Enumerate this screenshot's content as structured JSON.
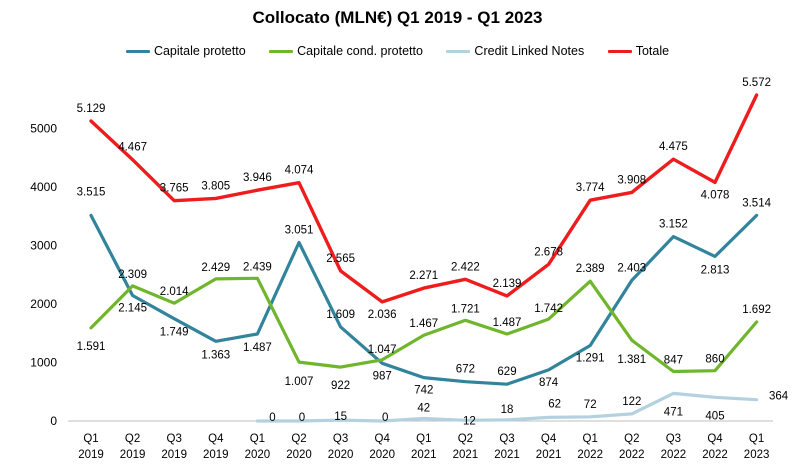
{
  "chart_data": {
    "type": "line",
    "title": "Collocato (MLN€) Q1 2019 - Q1 2023",
    "categories": [
      [
        "Q1",
        "2019"
      ],
      [
        "Q2",
        "2019"
      ],
      [
        "Q3",
        "2019"
      ],
      [
        "Q4",
        "2019"
      ],
      [
        "Q1",
        "2020"
      ],
      [
        "Q2",
        "2020"
      ],
      [
        "Q3",
        "2020"
      ],
      [
        "Q4",
        "2020"
      ],
      [
        "Q1",
        "2021"
      ],
      [
        "Q2",
        "2021"
      ],
      [
        "Q3",
        "2021"
      ],
      [
        "Q4",
        "2021"
      ],
      [
        "Q1",
        "2022"
      ],
      [
        "Q2",
        "2022"
      ],
      [
        "Q3",
        "2022"
      ],
      [
        "Q4",
        "2022"
      ],
      [
        "Q1",
        "2023"
      ]
    ],
    "ylim": [
      0,
      6000
    ],
    "yticks": [
      0,
      1000,
      2000,
      3000,
      4000,
      5000
    ],
    "grid": false,
    "legend_position": "top",
    "series": [
      {
        "name": "Capitale protetto",
        "color": "#31849b",
        "values": [
          3515,
          2145,
          1749,
          1363,
          1487,
          3051,
          1609,
          987,
          742,
          672,
          629,
          874,
          1291,
          2403,
          3152,
          2813,
          3514
        ],
        "labels": [
          "3.515",
          "2.145",
          "1.749",
          "1.363",
          "1.487",
          "3.051",
          "1.609",
          "987",
          "742",
          "672",
          "629",
          "874",
          "1.291",
          "2.403",
          "3.152",
          "2.813",
          "3.514"
        ]
      },
      {
        "name": "Capitale cond. protetto",
        "color": "#70b62c",
        "values": [
          1591,
          2309,
          2014,
          2429,
          2439,
          1007,
          922,
          1047,
          1467,
          1721,
          1487,
          1742,
          2389,
          1381,
          847,
          860,
          1692
        ],
        "labels": [
          "1.591",
          "2.309",
          "2.014",
          "2.429",
          "2.439",
          "1.007",
          "922",
          "1.047",
          "1.467",
          "1.721",
          "1.487",
          "1.742",
          "2.389",
          "1.381",
          "847",
          "860",
          "1.692"
        ]
      },
      {
        "name": "Credit Linked Notes",
        "color": "#b4d1df",
        "values": [
          null,
          null,
          null,
          null,
          0,
          0,
          15,
          0,
          42,
          12,
          18,
          62,
          72,
          122,
          471,
          405,
          364
        ],
        "labels": [
          "",
          "",
          "",
          "",
          "0",
          "0",
          "15",
          "0",
          "42",
          "12",
          "18",
          "62",
          "72",
          "122",
          "471",
          "405",
          "364"
        ]
      },
      {
        "name": "Totale",
        "color": "#ee1c1c",
        "values": [
          5129,
          4467,
          3765,
          3805,
          3946,
          4074,
          2565,
          2036,
          2271,
          2422,
          2139,
          2678,
          3774,
          3908,
          4475,
          4078,
          5572
        ],
        "labels": [
          "5.129",
          "4.467",
          "3.765",
          "3.805",
          "3.946",
          "4.074",
          "2.565",
          "2.036",
          "2.271",
          "2.422",
          "2.139",
          "2.678",
          "3.774",
          "3.908",
          "4.475",
          "4.078",
          "5.572"
        ]
      }
    ]
  }
}
